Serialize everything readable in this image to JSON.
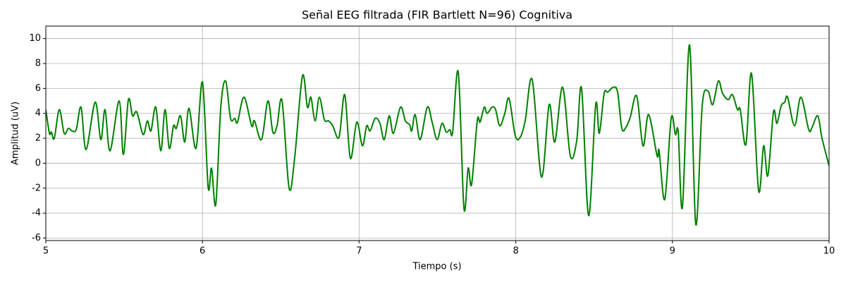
{
  "chart_data": {
    "type": "line",
    "title": "Señal EEG filtrada (FIR Bartlett N=96) Cognitiva",
    "x_label": "Tiempo (s)",
    "y_label": "Amplitud (uV)",
    "xlim": [
      5,
      10
    ],
    "xticks": [
      5,
      6,
      7,
      8,
      9,
      10
    ],
    "ylim": [
      -6.2,
      11
    ],
    "yticks": [
      -6,
      -4,
      -2,
      0,
      2,
      4,
      6,
      8,
      10
    ],
    "grid": true,
    "x": [
      5.0,
      5.023,
      5.036,
      5.054,
      5.086,
      5.117,
      5.144,
      5.167,
      5.194,
      5.225,
      5.257,
      5.315,
      5.351,
      5.378,
      5.41,
      5.468,
      5.495,
      5.527,
      5.554,
      5.581,
      5.621,
      5.648,
      5.671,
      5.702,
      5.734,
      5.761,
      5.788,
      5.815,
      5.833,
      5.86,
      5.887,
      5.914,
      5.959,
      6.0,
      6.036,
      6.058,
      6.085,
      6.117,
      6.148,
      6.179,
      6.206,
      6.224,
      6.265,
      6.314,
      6.332,
      6.377,
      6.418,
      6.449,
      6.476,
      6.508,
      6.553,
      6.589,
      6.638,
      6.67,
      6.692,
      6.719,
      6.746,
      6.778,
      6.805,
      6.832,
      6.872,
      6.908,
      6.944,
      6.985,
      7.021,
      7.048,
      7.07,
      7.102,
      7.133,
      7.16,
      7.192,
      7.219,
      7.264,
      7.295,
      7.322,
      7.336,
      7.358,
      7.39,
      7.435,
      7.466,
      7.498,
      7.529,
      7.556,
      7.579,
      7.597,
      7.633,
      7.669,
      7.696,
      7.718,
      7.754,
      7.772,
      7.799,
      7.817,
      7.849,
      7.871,
      7.898,
      7.93,
      7.957,
      7.997,
      8.029,
      8.06,
      8.105,
      8.164,
      8.213,
      8.249,
      8.299,
      8.348,
      8.389,
      8.42,
      8.465,
      8.51,
      8.533,
      8.564,
      8.587,
      8.623,
      8.65,
      8.677,
      8.704,
      8.731,
      8.772,
      8.812,
      8.848,
      8.902,
      8.915,
      8.951,
      8.992,
      9.019,
      9.037,
      9.064,
      9.109,
      9.149,
      9.19,
      9.226,
      9.257,
      9.293,
      9.32,
      9.356,
      9.383,
      9.415,
      9.433,
      9.469,
      9.505,
      9.55,
      9.582,
      9.609,
      9.645,
      9.667,
      9.694,
      9.717,
      9.735,
      9.78,
      9.82,
      9.87,
      9.892,
      9.928,
      9.955,
      10.0
    ],
    "series": [
      {
        "name": "EEG",
        "color": "#008000",
        "values": [
          4.3,
          2.4,
          2.5,
          2.0,
          4.3,
          2.4,
          2.8,
          2.6,
          2.7,
          4.5,
          1.1,
          4.9,
          1.9,
          4.3,
          1.0,
          5.0,
          0.7,
          5.1,
          3.8,
          4.1,
          2.3,
          3.4,
          2.6,
          4.5,
          1.0,
          4.3,
          1.2,
          3.0,
          2.8,
          3.8,
          1.7,
          4.4,
          1.2,
          6.5,
          -1.9,
          -0.4,
          -3.3,
          4.5,
          6.6,
          3.6,
          3.6,
          3.3,
          5.3,
          3.0,
          3.4,
          1.9,
          5.0,
          2.5,
          3.0,
          5.0,
          -2.0,
          0.5,
          7.0,
          4.5,
          5.3,
          3.4,
          5.3,
          3.5,
          3.4,
          3.0,
          2.1,
          5.5,
          0.4,
          3.3,
          1.4,
          3.0,
          2.6,
          3.6,
          3.2,
          1.9,
          3.8,
          2.4,
          4.5,
          3.4,
          3.1,
          2.6,
          3.9,
          1.9,
          4.5,
          3.3,
          1.9,
          3.2,
          2.5,
          2.7,
          2.5,
          7.3,
          -3.6,
          -0.4,
          -1.7,
          3.4,
          3.3,
          4.5,
          4.0,
          4.5,
          4.3,
          3.0,
          4.0,
          5.2,
          2.2,
          2.1,
          3.4,
          6.7,
          -1.1,
          4.7,
          1.7,
          6.1,
          0.6,
          1.8,
          6.0,
          -4.2,
          4.7,
          2.4,
          5.6,
          5.7,
          6.1,
          5.7,
          2.8,
          2.9,
          3.7,
          5.4,
          1.4,
          3.9,
          0.6,
          1.0,
          -2.9,
          3.6,
          2.3,
          2.5,
          -3.5,
          9.5,
          -4.9,
          4.6,
          5.8,
          4.7,
          6.6,
          5.6,
          5.1,
          5.5,
          4.3,
          4.3,
          1.5,
          7.2,
          -2.2,
          1.4,
          -1.0,
          4.1,
          3.2,
          4.6,
          4.9,
          5.3,
          3.0,
          5.3,
          2.7,
          2.9,
          3.8,
          2.0,
          -0.2
        ]
      }
    ]
  }
}
